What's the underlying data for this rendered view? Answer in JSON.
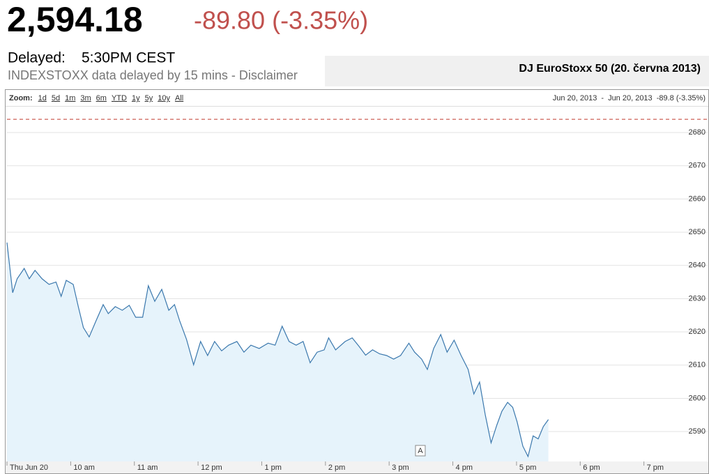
{
  "header": {
    "price": "2,594.18",
    "change": "-89.80 (-3.35%)",
    "delayed_label": "Delayed:",
    "delayed_time": "5:30PM CEST",
    "disclaimer": "INDEXSTOXX data delayed by 15 mins - Disclaimer",
    "chart_heading": "DJ EuroStoxx 50 (20. června 2013)"
  },
  "toolbar": {
    "zoom_label": "Zoom:",
    "zoom_options": [
      "1d",
      "5d",
      "1m",
      "3m",
      "6m",
      "YTD",
      "1y",
      "5y",
      "10y",
      "All"
    ],
    "range_start": "Jun 20, 2013",
    "range_separator": "-",
    "range_end": "Jun 20, 2013",
    "range_change": "-89.8 (-3.35%)"
  },
  "chart_data": {
    "type": "area",
    "color": "#3b78ad",
    "fill": "#e6f3fb",
    "grid": true,
    "x": [
      9.0,
      9.09,
      9.16,
      9.27,
      9.35,
      9.44,
      9.55,
      9.66,
      9.77,
      9.85,
      9.93,
      10.04,
      10.12,
      10.2,
      10.29,
      10.4,
      10.51,
      10.59,
      10.7,
      10.81,
      10.92,
      11.02,
      11.13,
      11.22,
      11.32,
      11.43,
      11.54,
      11.63,
      11.71,
      11.82,
      11.93,
      12.04,
      12.15,
      12.26,
      12.37,
      12.48,
      12.61,
      12.72,
      12.83,
      12.96,
      13.1,
      13.21,
      13.32,
      13.43,
      13.54,
      13.65,
      13.76,
      13.87,
      13.98,
      14.05,
      14.16,
      14.31,
      14.42,
      14.53,
      14.63,
      14.74,
      14.85,
      14.96,
      15.07,
      15.18,
      15.31,
      15.4,
      15.51,
      15.6,
      15.7,
      15.81,
      15.91,
      16.02,
      16.13,
      16.24,
      16.33,
      16.42,
      16.51,
      16.6,
      16.69,
      16.77,
      16.86,
      16.94,
      17.01,
      17.1,
      17.18,
      17.26,
      17.34,
      17.42,
      17.5
    ],
    "values": [
      2646.9,
      2631.8,
      2636.0,
      2639.1,
      2636.0,
      2638.5,
      2636.0,
      2634.3,
      2635.0,
      2630.7,
      2635.5,
      2634.3,
      2627.6,
      2621.3,
      2618.5,
      2623.4,
      2628.2,
      2625.5,
      2627.6,
      2626.5,
      2628.0,
      2624.4,
      2624.4,
      2633.9,
      2629.2,
      2632.8,
      2626.5,
      2628.2,
      2623.4,
      2617.7,
      2610.1,
      2617.1,
      2612.9,
      2617.1,
      2614.3,
      2616.0,
      2617.1,
      2613.9,
      2616.0,
      2615.0,
      2616.6,
      2616.0,
      2621.7,
      2617.1,
      2616.0,
      2617.1,
      2610.7,
      2613.9,
      2614.6,
      2618.2,
      2614.6,
      2617.1,
      2618.2,
      2615.6,
      2613.0,
      2614.6,
      2613.4,
      2612.9,
      2611.8,
      2612.9,
      2616.6,
      2613.9,
      2611.8,
      2608.7,
      2615.0,
      2619.2,
      2613.9,
      2617.5,
      2612.9,
      2608.7,
      2601.3,
      2604.9,
      2595.0,
      2586.6,
      2591.9,
      2596.1,
      2598.8,
      2597.3,
      2592.9,
      2585.6,
      2582.5,
      2588.7,
      2587.8,
      2591.5,
      2593.6
    ],
    "reference_value": 2683.98,
    "reference_color": "#c0392b",
    "xlim": [
      9,
      20
    ],
    "ylim": [
      2581,
      2688
    ],
    "xticks": [
      {
        "value": 9,
        "label": "Thu Jun 20"
      },
      {
        "value": 10,
        "label": "10 am"
      },
      {
        "value": 11,
        "label": "11 am"
      },
      {
        "value": 12,
        "label": "12 pm"
      },
      {
        "value": 13,
        "label": "1 pm"
      },
      {
        "value": 14,
        "label": "2 pm"
      },
      {
        "value": 15,
        "label": "3 pm"
      },
      {
        "value": 16,
        "label": "4 pm"
      },
      {
        "value": 17,
        "label": "5 pm"
      },
      {
        "value": 18,
        "label": "6 pm"
      },
      {
        "value": 19,
        "label": "7 pm"
      }
    ],
    "yticks": [
      2590,
      2600,
      2610,
      2620,
      2630,
      2640,
      2650,
      2660,
      2670,
      2680
    ],
    "annotations": [
      {
        "x": 15.49,
        "label": "A"
      }
    ]
  }
}
